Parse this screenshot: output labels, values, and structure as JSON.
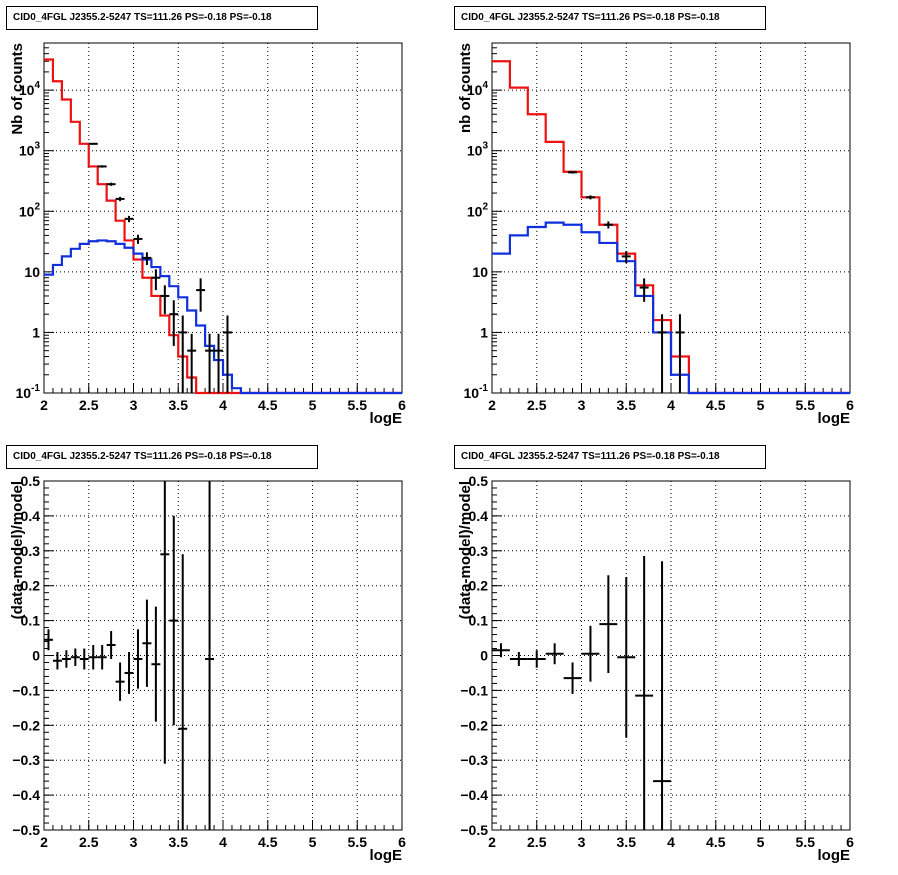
{
  "panels": [
    {
      "title": "CID0_4FGL J2355.2-5247 TS=111.26 PS=-0.18 PS=-0.18",
      "chart_data": {
        "type": "line",
        "xlabel": "logE",
        "ylabel": "Nb of counts",
        "xlim": [
          2,
          6
        ],
        "ylim": [
          0.1,
          60000
        ],
        "yscale": "log",
        "grid": true,
        "x_ticks": [
          "2",
          "2.5",
          "3",
          "3.5",
          "4",
          "4.5",
          "5",
          "5.5",
          "6"
        ],
        "y_ticks": [
          "10^-1",
          "1",
          "10",
          "10^2",
          "10^3",
          "10^4"
        ],
        "bin_edges": [
          2.0,
          2.1,
          2.2,
          2.3,
          2.4,
          2.5,
          2.6,
          2.7,
          2.8,
          2.9,
          3.0,
          3.1,
          3.2,
          3.3,
          3.4,
          3.5,
          3.6,
          3.7,
          3.8,
          3.9,
          4.0,
          4.1,
          4.2,
          4.3,
          4.4,
          4.5,
          4.6,
          4.7,
          4.8,
          4.9,
          5.0,
          5.1,
          5.2,
          5.3,
          5.4,
          5.5,
          5.6,
          5.7,
          5.8,
          5.9,
          6.0
        ],
        "series": [
          {
            "name": "",
            "style": "step",
            "color": "#ee1111",
            "values": [
              32000,
              14000,
              7000,
              3000,
              1300,
              550,
              280,
              150,
              70,
              33,
              16,
              8,
              4,
              1.9,
              0.9,
              0.4,
              0.18,
              0.1,
              0.1,
              0.1,
              0.1,
              0.1,
              0.1,
              0.1,
              0.1,
              0.1,
              0.1,
              0.1,
              0.1,
              0.1,
              0.1,
              0.1,
              0.1,
              0.1,
              0.1,
              0.1,
              0.1,
              0.1,
              0.1,
              0.1
            ]
          },
          {
            "name": "",
            "style": "step",
            "color": "#1030dd",
            "values": [
              9,
              13,
              18,
              24,
              29,
              32,
              33,
              32,
              29,
              25,
              20,
              16,
              12,
              8.5,
              5.8,
              3.8,
              2.3,
              1.3,
              0.6,
              0.35,
              0.2,
              0.12,
              0.1,
              0.1,
              0.1,
              0.1,
              0.1,
              0.1,
              0.1,
              0.1,
              0.1,
              0.1,
              0.1,
              0.1,
              0.1,
              0.1,
              0.1,
              0.1,
              0.1,
              0.1
            ]
          },
          {
            "name": "",
            "style": "points",
            "color": "#000000",
            "x": [
              2.55,
              2.65,
              2.75,
              2.85,
              2.95,
              3.05,
              3.15,
              3.25,
              3.35,
              3.45,
              3.55,
              3.65,
              3.75,
              3.85,
              3.95,
              4.05
            ],
            "y": [
              1300,
              550,
              280,
              160,
              75,
              35,
              17,
              8,
              4,
              2,
              1,
              0.5,
              5,
              0.5,
              0.5,
              1
            ],
            "yerr_low": [
              40,
              25,
              17,
              13,
              9,
              6,
              4,
              3,
              2,
              1.4,
              0.9,
              0.45,
              2.8,
              0.45,
              0.45,
              0.9
            ],
            "yerr_high": [
              40,
              25,
              17,
              13,
              9,
              6,
              4,
              3,
              2,
              1.4,
              0.9,
              0.45,
              2.8,
              0.45,
              0.45,
              0.9
            ]
          }
        ]
      }
    },
    {
      "title": "CID0_4FGL J2355.2-5247 TS=111.26 PS=-0.18 PS=-0.18",
      "chart_data": {
        "type": "line",
        "xlabel": "logE",
        "ylabel": "nb of counts",
        "xlim": [
          2,
          6
        ],
        "ylim": [
          0.1,
          60000
        ],
        "yscale": "log",
        "grid": true,
        "x_ticks": [
          "2",
          "2.5",
          "3",
          "3.5",
          "4",
          "4.5",
          "5",
          "5.5",
          "6"
        ],
        "y_ticks": [
          "10^-1",
          "1",
          "10",
          "10^2",
          "10^3",
          "10^4"
        ],
        "bin_edges": [
          2.0,
          2.2,
          2.4,
          2.6,
          2.8,
          3.0,
          3.2,
          3.4,
          3.6,
          3.8,
          4.0,
          4.2,
          4.4,
          4.6,
          4.8,
          5.0,
          5.2,
          5.4,
          5.6,
          5.8,
          6.0
        ],
        "series": [
          {
            "name": "",
            "style": "step",
            "color": "#ee1111",
            "values": [
              30000,
              11000,
              4000,
              1400,
              450,
              170,
              60,
              20,
              6,
              1.6,
              0.4,
              0.1,
              0.1,
              0.1,
              0.1,
              0.1,
              0.1,
              0.1,
              0.1,
              0.1
            ]
          },
          {
            "name": "",
            "style": "step",
            "color": "#1030dd",
            "values": [
              20,
              40,
              55,
              65,
              60,
              45,
              30,
              15,
              4,
              1,
              0.2,
              0.1,
              0.1,
              0.1,
              0.1,
              0.1,
              0.1,
              0.1,
              0.1,
              0.1
            ]
          },
          {
            "name": "",
            "style": "points",
            "color": "#000000",
            "x": [
              2.9,
              3.1,
              3.3,
              3.5,
              3.7,
              3.9,
              4.1
            ],
            "y": [
              440,
              170,
              60,
              18,
              5.5,
              1,
              1
            ],
            "yerr_low": [
              21,
              13,
              8,
              4,
              2.3,
              0.95,
              0.95
            ],
            "yerr_high": [
              21,
              13,
              8,
              4,
              2.3,
              1,
              1
            ]
          }
        ]
      }
    },
    {
      "title": "CID0_4FGL J2355.2-5247 TS=111.26 PS=-0.18 PS=-0.18",
      "chart_data": {
        "type": "scatter",
        "xlabel": "logE",
        "ylabel": "(data-model)/model",
        "xlim": [
          2,
          6
        ],
        "ylim": [
          -0.5,
          0.5
        ],
        "grid": true,
        "x_ticks": [
          "2",
          "2.5",
          "3",
          "3.5",
          "4",
          "4.5",
          "5",
          "5.5",
          "6"
        ],
        "y_ticks": [
          "−0.5",
          "−0.4",
          "−0.3",
          "−0.2",
          "−0.1",
          "0",
          "0.1",
          "0.2",
          "0.3",
          "0.4",
          "0.5"
        ],
        "series": [
          {
            "name": "",
            "color": "#000000",
            "xerr": 0.05,
            "x": [
              2.05,
              2.15,
              2.25,
              2.35,
              2.45,
              2.55,
              2.65,
              2.75,
              2.85,
              2.95,
              3.05,
              3.15,
              3.25,
              3.35,
              3.45,
              3.55,
              3.85
            ],
            "y": [
              0.045,
              -0.015,
              -0.01,
              -0.005,
              -0.01,
              -0.005,
              -0.005,
              0.03,
              -0.075,
              -0.05,
              -0.01,
              0.035,
              -0.025,
              0.29,
              0.1,
              -0.21,
              -0.01
            ],
            "yerr": [
              0.03,
              0.025,
              0.025,
              0.025,
              0.03,
              0.035,
              0.035,
              0.04,
              0.055,
              0.06,
              0.085,
              0.125,
              0.165,
              0.6,
              0.3,
              0.5,
              0.9
            ]
          }
        ]
      }
    },
    {
      "title": "CID0_4FGL J2355.2-5247 TS=111.26 PS=-0.18 PS=-0.18",
      "chart_data": {
        "type": "scatter",
        "xlabel": "logE",
        "ylabel": "(data-model)/model",
        "xlim": [
          2,
          6
        ],
        "ylim": [
          -0.5,
          0.5
        ],
        "grid": true,
        "x_ticks": [
          "2",
          "2.5",
          "3",
          "3.5",
          "4",
          "4.5",
          "5",
          "5.5",
          "6"
        ],
        "y_ticks": [
          "−0.5",
          "−0.4",
          "−0.3",
          "−0.2",
          "−0.1",
          "0",
          "0.1",
          "0.2",
          "0.3",
          "0.4",
          "0.5"
        ],
        "series": [
          {
            "name": "",
            "color": "#000000",
            "xerr": 0.1,
            "x": [
              2.1,
              2.3,
              2.5,
              2.7,
              2.9,
              3.1,
              3.3,
              3.5,
              3.7,
              3.9
            ],
            "y": [
              0.015,
              -0.01,
              -0.01,
              0.005,
              -0.065,
              0.005,
              0.09,
              -0.005,
              -0.115,
              -0.36
            ],
            "yerr": [
              0.02,
              0.02,
              0.025,
              0.03,
              0.045,
              0.08,
              0.14,
              0.23,
              0.4,
              0.63
            ]
          }
        ]
      }
    }
  ]
}
